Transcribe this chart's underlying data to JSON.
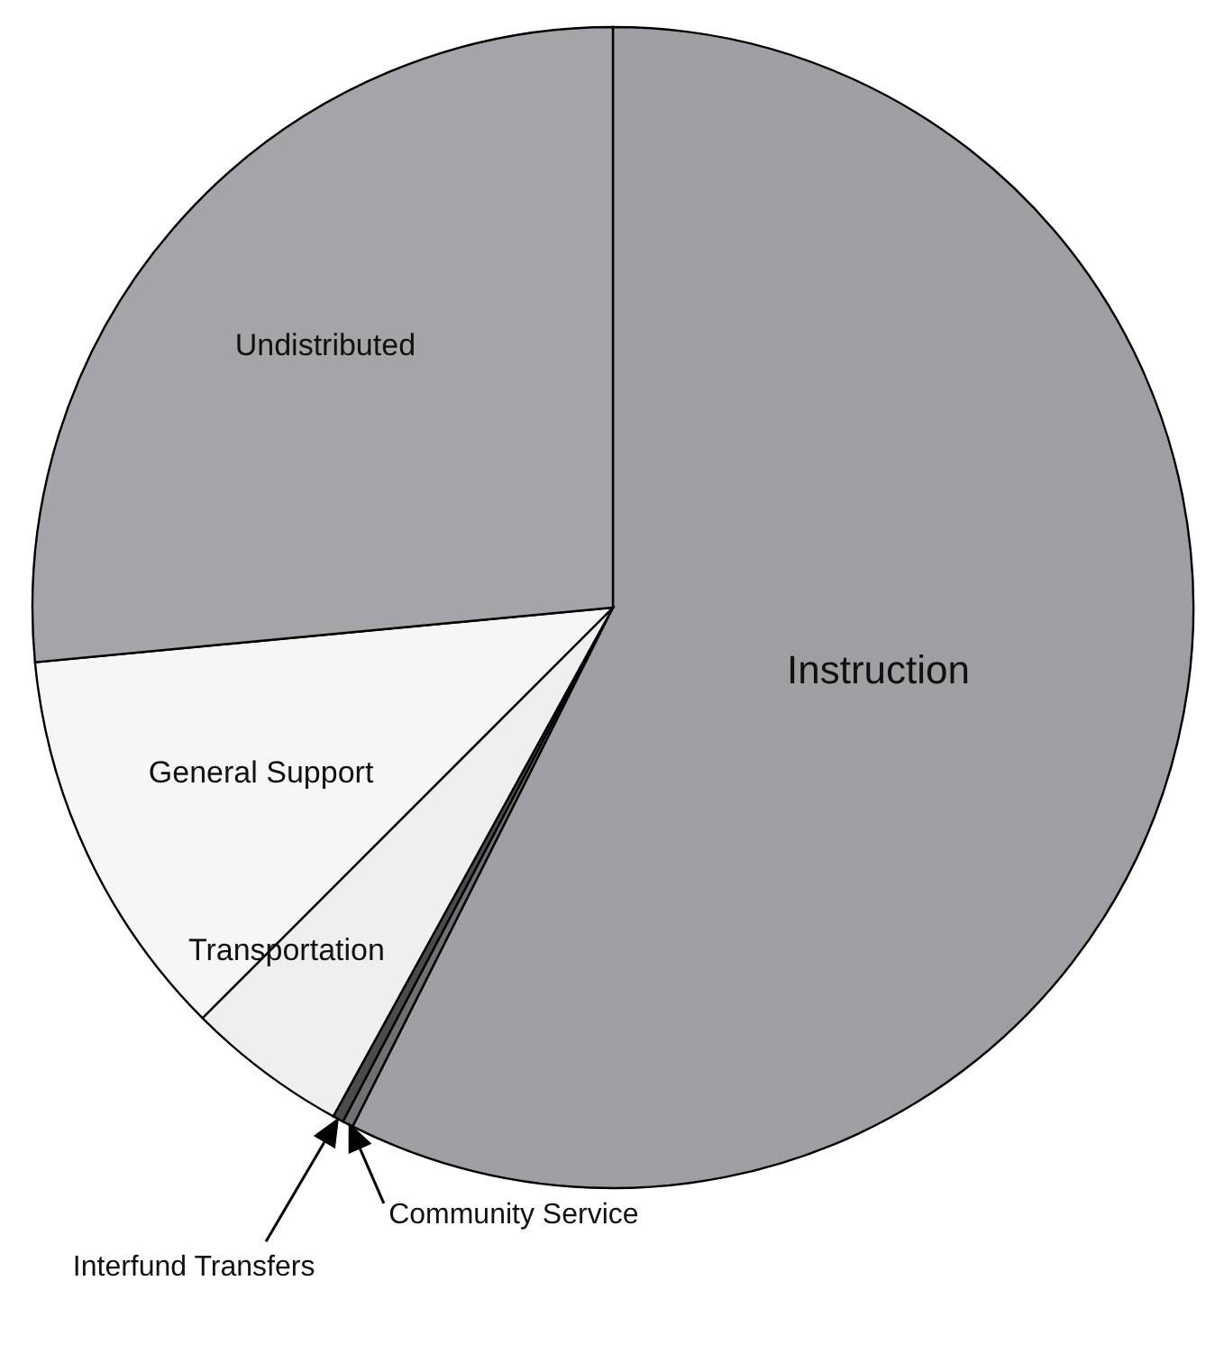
{
  "chart_data": {
    "type": "pie",
    "categories": [
      "Instruction",
      "Community Service",
      "Interfund Transfers",
      "Transportation",
      "General Support",
      "Undistributed"
    ],
    "values": [
      57.4,
      0.3,
      0.3,
      4.5,
      11,
      26.5
    ],
    "colors": [
      "#9d9fa2",
      "#6f7072",
      "#4a4b4d",
      "#efefef",
      "#f6f6f6",
      "#a3a5a8"
    ]
  }
}
